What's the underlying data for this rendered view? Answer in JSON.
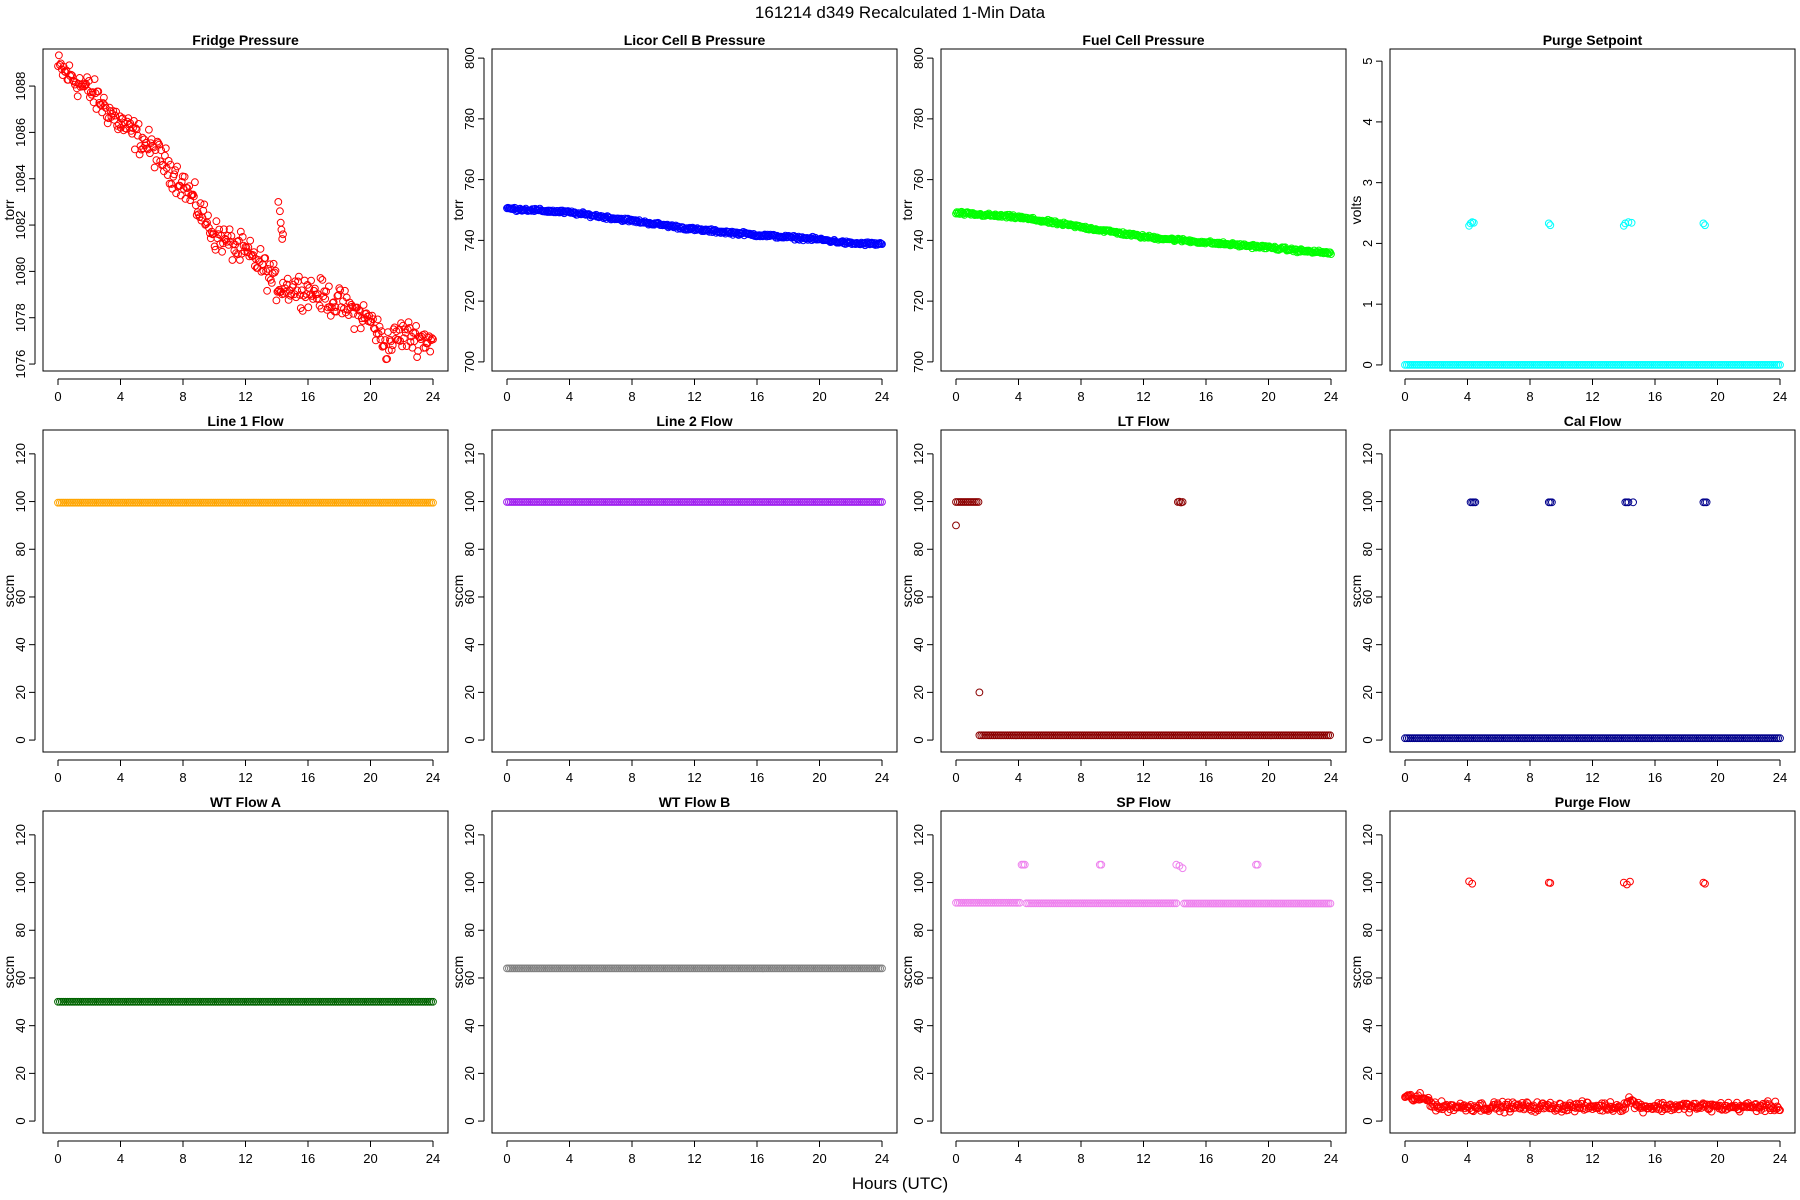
{
  "figure": {
    "title": "161214   d349   Recalculated 1-Min Data",
    "xlabel": "Hours (UTC)"
  },
  "chart_data": [
    {
      "type": "scatter",
      "title": "Fridge Pressure",
      "ylabel": "torr",
      "color": "#ff0000",
      "xlim": [
        0,
        24
      ],
      "xticks": [
        0,
        4,
        8,
        12,
        16,
        20,
        24
      ],
      "ylim": [
        1075.7,
        1089.6
      ],
      "yticks": [
        1076,
        1078,
        1080,
        1082,
        1084,
        1086,
        1088
      ],
      "series": [
        {
          "segments": [
            {
              "x0": 0,
              "x1": 24,
              "points": [
                [
                  0,
                  1088.8
                ],
                [
                  2,
                  1087.8
                ],
                [
                  4,
                  1086.4
                ],
                [
                  6,
                  1085.3
                ],
                [
                  8,
                  1083.8
                ],
                [
                  10,
                  1081.6
                ],
                [
                  12,
                  1080.8
                ],
                [
                  13,
                  1080.3
                ],
                [
                  14,
                  1079.4
                ],
                [
                  16,
                  1079.2
                ],
                [
                  18,
                  1078.6
                ],
                [
                  20,
                  1077.9
                ],
                [
                  21,
                  1076.8
                ],
                [
                  22,
                  1077.3
                ],
                [
                  24,
                  1077.0
                ]
              ],
              "noise": 0.55
            }
          ],
          "points": [
            [
              14.1,
              1083.0
            ],
            [
              14.2,
              1082.6
            ],
            [
              14.25,
              1082.1
            ],
            [
              14.3,
              1081.8
            ],
            [
              14.35,
              1081.4
            ],
            [
              14.4,
              1081.6
            ]
          ]
        }
      ]
    },
    {
      "type": "scatter",
      "title": "Licor Cell B Pressure",
      "ylabel": "torr",
      "color": "#0000ff",
      "xlim": [
        0,
        24
      ],
      "xticks": [
        0,
        4,
        8,
        12,
        16,
        20,
        24
      ],
      "ylim": [
        697,
        803
      ],
      "yticks": [
        700,
        720,
        740,
        760,
        780,
        800
      ],
      "series": [
        {
          "segments": [
            {
              "x0": 0,
              "x1": 24,
              "points": [
                [
                  0,
                  750.5
                ],
                [
                  4,
                  749.2
                ],
                [
                  8,
                  746.5
                ],
                [
                  12,
                  743.6
                ],
                [
                  16,
                  741.8
                ],
                [
                  20,
                  740.3
                ],
                [
                  22,
                  739.0
                ],
                [
                  24,
                  738.8
                ]
              ],
              "noise": 0.45
            }
          ]
        }
      ]
    },
    {
      "type": "scatter",
      "title": "Fuel Cell Pressure",
      "ylabel": "torr",
      "color": "#00ff00",
      "xlim": [
        0,
        24
      ],
      "xticks": [
        0,
        4,
        8,
        12,
        16,
        20,
        24
      ],
      "ylim": [
        697,
        803
      ],
      "yticks": [
        700,
        720,
        740,
        760,
        780,
        800
      ],
      "series": [
        {
          "segments": [
            {
              "x0": 0,
              "x1": 24,
              "points": [
                [
                  0,
                  749.0
                ],
                [
                  4,
                  747.6
                ],
                [
                  8,
                  744.4
                ],
                [
                  12,
                  741.2
                ],
                [
                  16,
                  739.3
                ],
                [
                  20,
                  737.7
                ],
                [
                  22,
                  736.6
                ],
                [
                  24,
                  735.8
                ]
              ],
              "noise": 0.45
            }
          ]
        }
      ]
    },
    {
      "type": "scatter",
      "title": "Purge Setpoint",
      "ylabel": "volts",
      "color": "#00ffff",
      "xlim": [
        0,
        24
      ],
      "xticks": [
        0,
        4,
        8,
        12,
        16,
        20,
        24
      ],
      "ylim": [
        -0.1,
        5.2
      ],
      "yticks": [
        0,
        1,
        2,
        3,
        4,
        5
      ],
      "series": [
        {
          "segments": [
            {
              "x0": 0,
              "x1": 24,
              "points": [
                [
                  0,
                  0
                ],
                [
                  24,
                  0
                ]
              ],
              "noise": 0.0
            }
          ],
          "points": [
            [
              4.1,
              2.29
            ],
            [
              4.2,
              2.33
            ],
            [
              4.3,
              2.35
            ],
            [
              4.4,
              2.34
            ],
            [
              9.2,
              2.33
            ],
            [
              9.3,
              2.3
            ],
            [
              14.0,
              2.29
            ],
            [
              14.1,
              2.33
            ],
            [
              14.3,
              2.35
            ],
            [
              14.5,
              2.34
            ],
            [
              19.1,
              2.33
            ],
            [
              19.2,
              2.3
            ]
          ]
        }
      ]
    },
    {
      "type": "scatter",
      "title": "Line 1 Flow",
      "ylabel": "sccm",
      "color": "#ffa500",
      "xlim": [
        0,
        24
      ],
      "xticks": [
        0,
        4,
        8,
        12,
        16,
        20,
        24
      ],
      "ylim": [
        -5,
        130
      ],
      "yticks": [
        0,
        20,
        40,
        60,
        80,
        100,
        120
      ],
      "series": [
        {
          "segments": [
            {
              "x0": 0,
              "x1": 24,
              "points": [
                [
                  0,
                  99.5
                ],
                [
                  24,
                  99.5
                ]
              ],
              "noise": 0.0
            }
          ]
        }
      ]
    },
    {
      "type": "scatter",
      "title": "Line 2 Flow",
      "ylabel": "sccm",
      "color": "#a020f0",
      "xlim": [
        0,
        24
      ],
      "xticks": [
        0,
        4,
        8,
        12,
        16,
        20,
        24
      ],
      "ylim": [
        -5,
        130
      ],
      "yticks": [
        0,
        20,
        40,
        60,
        80,
        100,
        120
      ],
      "series": [
        {
          "segments": [
            {
              "x0": 0,
              "x1": 24,
              "points": [
                [
                  0,
                  99.8
                ],
                [
                  24,
                  99.8
                ]
              ],
              "noise": 0.0
            }
          ]
        }
      ]
    },
    {
      "type": "scatter",
      "title": "LT Flow",
      "ylabel": "sccm",
      "color": "#8b0000",
      "xlim": [
        0,
        24
      ],
      "xticks": [
        0,
        4,
        8,
        12,
        16,
        20,
        24
      ],
      "ylim": [
        -5,
        130
      ],
      "yticks": [
        0,
        20,
        40,
        60,
        80,
        100,
        120
      ],
      "series": [
        {
          "segments": [
            {
              "x0": 0,
              "x1": 1.5,
              "points": [
                [
                  0,
                  99.8
                ],
                [
                  1.5,
                  99.8
                ]
              ],
              "noise": 0.0
            },
            {
              "x0": 1.5,
              "x1": 24,
              "points": [
                [
                  1.5,
                  2.0
                ],
                [
                  24,
                  2.0
                ]
              ],
              "noise": 0.0
            }
          ],
          "points": [
            [
              0,
              90
            ],
            [
              1.5,
              20
            ],
            [
              14.2,
              99.8
            ],
            [
              14.3,
              100
            ],
            [
              14.4,
              99.6
            ],
            [
              14.5,
              99.8
            ]
          ]
        }
      ]
    },
    {
      "type": "scatter",
      "title": "Cal Flow",
      "ylabel": "sccm",
      "color": "#00008b",
      "xlim": [
        0,
        24
      ],
      "xticks": [
        0,
        4,
        8,
        12,
        16,
        20,
        24
      ],
      "ylim": [
        -5,
        130
      ],
      "yticks": [
        0,
        20,
        40,
        60,
        80,
        100,
        120
      ],
      "series": [
        {
          "segments": [
            {
              "x0": 0,
              "x1": 24,
              "points": [
                [
                  0,
                  0.8
                ],
                [
                  24,
                  0.8
                ]
              ],
              "noise": 0.0
            }
          ],
          "points": [
            [
              4.2,
              99.7
            ],
            [
              4.3,
              99.7
            ],
            [
              4.4,
              99.7
            ],
            [
              4.5,
              99.7
            ],
            [
              9.2,
              99.7
            ],
            [
              9.3,
              99.7
            ],
            [
              9.4,
              99.7
            ],
            [
              14.1,
              99.7
            ],
            [
              14.2,
              99.7
            ],
            [
              14.3,
              99.7
            ],
            [
              14.6,
              99.7
            ],
            [
              19.1,
              99.7
            ],
            [
              19.2,
              99.7
            ],
            [
              19.3,
              99.7
            ]
          ]
        }
      ]
    },
    {
      "type": "scatter",
      "title": "WT Flow A",
      "ylabel": "sccm",
      "color": "#006400",
      "xlim": [
        0,
        24
      ],
      "xticks": [
        0,
        4,
        8,
        12,
        16,
        20,
        24
      ],
      "ylim": [
        -5,
        130
      ],
      "yticks": [
        0,
        20,
        40,
        60,
        80,
        100,
        120
      ],
      "series": [
        {
          "segments": [
            {
              "x0": 0,
              "x1": 24,
              "points": [
                [
                  0,
                  50
                ],
                [
                  24,
                  50
                ]
              ],
              "noise": 0.0
            }
          ]
        }
      ]
    },
    {
      "type": "scatter",
      "title": "WT Flow B",
      "ylabel": "sccm",
      "color": "#808080",
      "xlim": [
        0,
        24
      ],
      "xticks": [
        0,
        4,
        8,
        12,
        16,
        20,
        24
      ],
      "ylim": [
        -5,
        130
      ],
      "yticks": [
        0,
        20,
        40,
        60,
        80,
        100,
        120
      ],
      "series": [
        {
          "segments": [
            {
              "x0": 0,
              "x1": 24,
              "points": [
                [
                  0,
                  64
                ],
                [
                  24,
                  64
                ]
              ],
              "noise": 0.0
            }
          ]
        }
      ]
    },
    {
      "type": "scatter",
      "title": "SP Flow",
      "ylabel": "sccm",
      "color": "#ee82ee",
      "xlim": [
        0,
        24
      ],
      "xticks": [
        0,
        4,
        8,
        12,
        16,
        20,
        24
      ],
      "ylim": [
        -5,
        130
      ],
      "yticks": [
        0,
        20,
        40,
        60,
        80,
        100,
        120
      ],
      "series": [
        {
          "segments": [
            {
              "x0": 0,
              "x1": 4.1,
              "points": [
                [
                  0,
                  91.5
                ],
                [
                  4.1,
                  91.5
                ]
              ],
              "noise": 0.0
            },
            {
              "x0": 4.5,
              "x1": 14.2,
              "points": [
                [
                  4.5,
                  91.3
                ],
                [
                  14.2,
                  91.3
                ]
              ],
              "noise": 0.0
            },
            {
              "x0": 14.6,
              "x1": 24,
              "points": [
                [
                  14.6,
                  91.2
                ],
                [
                  24,
                  91.2
                ]
              ],
              "noise": 0.0
            }
          ],
          "points": [
            [
              4.2,
              107.5
            ],
            [
              4.3,
              107.5
            ],
            [
              4.4,
              107.5
            ],
            [
              9.2,
              107.5
            ],
            [
              9.3,
              107.5
            ],
            [
              14.1,
              107.5
            ],
            [
              14.3,
              107.0
            ],
            [
              14.5,
              106.0
            ],
            [
              19.2,
              107.5
            ],
            [
              19.3,
              107.5
            ]
          ]
        }
      ]
    },
    {
      "type": "scatter",
      "title": "Purge Flow",
      "ylabel": "sccm",
      "color": "#ff0000",
      "xlim": [
        0,
        24
      ],
      "xticks": [
        0,
        4,
        8,
        12,
        16,
        20,
        24
      ],
      "ylim": [
        -5,
        130
      ],
      "yticks": [
        0,
        20,
        40,
        60,
        80,
        100,
        120
      ],
      "series": [
        {
          "segments": [
            {
              "x0": 0,
              "x1": 24,
              "points": [
                [
                  0,
                  10
                ],
                [
                  1.5,
                  9
                ],
                [
                  2,
                  6
                ],
                [
                  14,
                  6
                ],
                [
                  14.3,
                  9
                ],
                [
                  15,
                  6
                ],
                [
                  24,
                  6
                ]
              ],
              "noise": 1.6
            }
          ],
          "points": [
            [
              4.1,
              100.5
            ],
            [
              4.3,
              99.5
            ],
            [
              9.2,
              100
            ],
            [
              9.3,
              99.8
            ],
            [
              14.0,
              100
            ],
            [
              14.2,
              99.2
            ],
            [
              14.4,
              100.4
            ],
            [
              19.1,
              100
            ],
            [
              19.2,
              99.5
            ]
          ]
        }
      ]
    }
  ]
}
